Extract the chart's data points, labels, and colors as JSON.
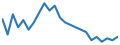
{
  "x": [
    0,
    1,
    2,
    3,
    4,
    5,
    6,
    7,
    8,
    9,
    10,
    11,
    12,
    13,
    14,
    15,
    16,
    17,
    18,
    19,
    20,
    21,
    22
  ],
  "y": [
    62,
    30,
    72,
    45,
    60,
    40,
    55,
    75,
    95,
    80,
    90,
    65,
    55,
    50,
    45,
    40,
    35,
    18,
    25,
    15,
    22,
    18,
    25
  ],
  "line_color": "#2a7aba",
  "linewidth": 1.5,
  "background_color": "#ffffff",
  "ylim": [
    10,
    100
  ],
  "xlim": [
    0,
    22
  ]
}
